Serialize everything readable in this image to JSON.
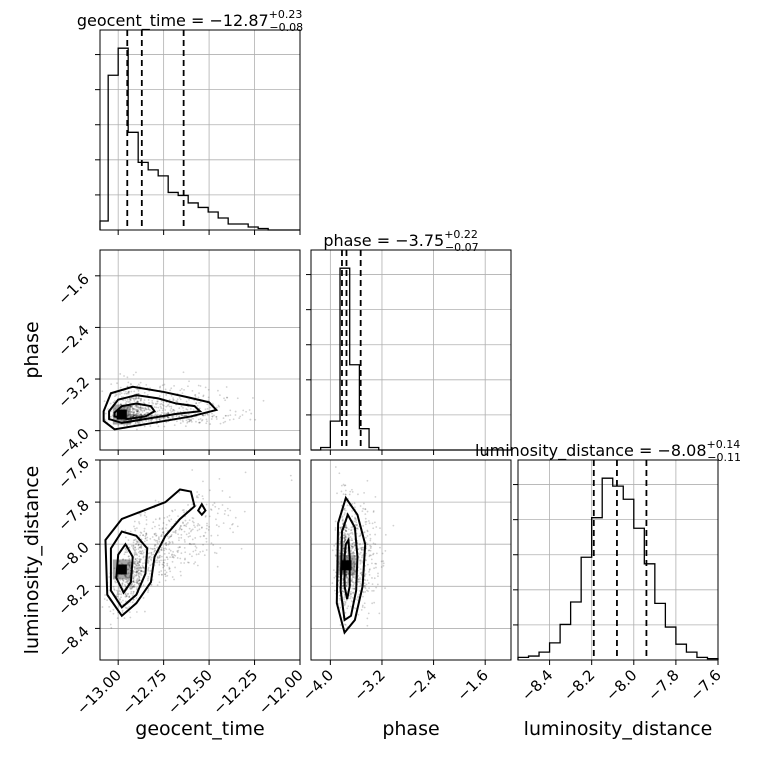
{
  "chart_data": {
    "type": "corner",
    "parameters": [
      {
        "key": "geocent_time",
        "axis_label": "geocent_time",
        "title": {
          "main": "geocent_time = −12.87",
          "upper": "+0.23",
          "lower": "−0.08"
        },
        "range": [
          -13.1,
          -12.0
        ],
        "ticks": [
          -13.0,
          -12.75,
          -12.5,
          -12.25,
          -12.0
        ],
        "tick_labels": [
          "−13.00",
          "−12.75",
          "−12.50",
          "−12.25",
          "−12.00"
        ],
        "quantiles": [
          -12.95,
          -12.87,
          -12.64
        ],
        "hist": {
          "bins": [
            -13.1,
            -13.055,
            -13.0,
            -12.945,
            -12.89,
            -12.835,
            -12.78,
            -12.725,
            -12.67,
            -12.615,
            -12.56,
            -12.505,
            -12.45,
            -12.395,
            -12.34,
            -12.285,
            -12.23,
            -12.175,
            -12.12,
            -12.065,
            -12.0
          ],
          "counts": [
            0.06,
            1.03,
            1.21,
            0.65,
            0.45,
            0.4,
            0.36,
            0.25,
            0.23,
            0.18,
            0.15,
            0.12,
            0.08,
            0.04,
            0.04,
            0.02,
            0.01,
            0.0,
            0.0,
            0.0
          ]
        }
      },
      {
        "key": "phase",
        "axis_label": "phase",
        "title": {
          "main": "phase = −3.75",
          "upper": "+0.22",
          "lower": "−0.07"
        },
        "range": [
          -4.3,
          -1.2
        ],
        "ticks": [
          -4.0,
          -3.2,
          -2.4,
          -1.6
        ],
        "tick_labels": [
          "−4.0",
          "−3.2",
          "−2.4",
          "−1.6"
        ],
        "quantiles": [
          -3.82,
          -3.75,
          -3.53
        ],
        "hist": {
          "bins": [
            -4.3,
            -4.15,
            -4.0,
            -3.85,
            -3.7,
            -3.55,
            -3.4,
            -3.25,
            -3.1,
            -2.95,
            -2.8,
            -2.65,
            -2.5,
            -2.35,
            -2.2,
            -2.05,
            -1.9,
            -1.75,
            -1.6,
            -1.45,
            -1.3,
            -1.2
          ],
          "counts": [
            0.0,
            0.02,
            0.23,
            1.45,
            0.68,
            0.17,
            0.02,
            0.0,
            0.0,
            0.0,
            0.0,
            0.0,
            0.0,
            0.0,
            0.0,
            0.0,
            0.0,
            0.0,
            0.0,
            0.0,
            0.0
          ]
        }
      },
      {
        "key": "luminosity_distance",
        "axis_label": "luminosity_distance",
        "title": {
          "main": "luminosity_distance = −8.08",
          "upper": "+0.14",
          "lower": "−0.11"
        },
        "range": [
          -8.55,
          -7.6
        ],
        "ticks": [
          -8.4,
          -8.2,
          -8.0,
          -7.8,
          -7.6
        ],
        "tick_labels": [
          "−8.4",
          "−8.2",
          "−8.0",
          "−7.8",
          "−7.6"
        ],
        "quantiles": [
          -8.19,
          -8.08,
          -7.94
        ],
        "hist": {
          "bins": [
            -8.55,
            -8.5,
            -8.45,
            -8.4,
            -8.35,
            -8.3,
            -8.25,
            -8.2,
            -8.15,
            -8.1,
            -8.05,
            -8.0,
            -7.95,
            -7.9,
            -7.85,
            -7.8,
            -7.75,
            -7.7,
            -7.65,
            -7.6
          ],
          "counts": [
            0.02,
            0.03,
            0.06,
            0.13,
            0.27,
            0.44,
            0.78,
            1.08,
            1.38,
            1.32,
            1.22,
            1.0,
            0.73,
            0.43,
            0.25,
            0.12,
            0.06,
            0.02,
            0.01
          ]
        }
      }
    ],
    "pairs": [
      {
        "x": "geocent_time",
        "y": "phase",
        "density_peak": [
          -12.98,
          -3.75
        ],
        "contours": [
          [
            [
              -13.02,
              -3.72
            ],
            [
              -12.98,
              -3.62
            ],
            [
              -12.9,
              -3.58
            ],
            [
              -12.82,
              -3.62
            ],
            [
              -12.8,
              -3.7
            ],
            [
              -12.85,
              -3.78
            ],
            [
              -12.95,
              -3.82
            ],
            [
              -13.02,
              -3.78
            ]
          ],
          [
            [
              -13.05,
              -3.7
            ],
            [
              -13.0,
              -3.52
            ],
            [
              -12.9,
              -3.45
            ],
            [
              -12.78,
              -3.5
            ],
            [
              -12.68,
              -3.58
            ],
            [
              -12.58,
              -3.62
            ],
            [
              -12.55,
              -3.7
            ],
            [
              -12.68,
              -3.74
            ],
            [
              -12.85,
              -3.82
            ],
            [
              -12.98,
              -3.88
            ],
            [
              -13.05,
              -3.82
            ]
          ],
          [
            [
              -13.08,
              -3.7
            ],
            [
              -13.04,
              -3.42
            ],
            [
              -12.92,
              -3.32
            ],
            [
              -12.75,
              -3.4
            ],
            [
              -12.62,
              -3.48
            ],
            [
              -12.5,
              -3.56
            ],
            [
              -12.46,
              -3.68
            ],
            [
              -12.6,
              -3.78
            ],
            [
              -12.85,
              -3.9
            ],
            [
              -13.02,
              -3.98
            ],
            [
              -13.08,
              -3.85
            ]
          ]
        ]
      },
      {
        "x": "geocent_time",
        "y": "luminosity_distance",
        "density_peak": [
          -12.98,
          -8.12
        ],
        "contours": [
          [
            [
              -13.0,
              -8.05
            ],
            [
              -12.96,
              -8.0
            ],
            [
              -12.92,
              -8.06
            ],
            [
              -12.93,
              -8.18
            ],
            [
              -12.97,
              -8.23
            ],
            [
              -13.01,
              -8.16
            ]
          ],
          [
            [
              -13.04,
              -8.02
            ],
            [
              -12.98,
              -7.94
            ],
            [
              -12.9,
              -7.96
            ],
            [
              -12.84,
              -8.02
            ],
            [
              -12.85,
              -8.14
            ],
            [
              -12.9,
              -8.24
            ],
            [
              -12.98,
              -8.3
            ],
            [
              -13.04,
              -8.22
            ]
          ],
          [
            [
              -13.07,
              -7.98
            ],
            [
              -12.98,
              -7.88
            ],
            [
              -12.86,
              -7.84
            ],
            [
              -12.74,
              -7.8
            ],
            [
              -12.66,
              -7.74
            ],
            [
              -12.6,
              -7.75
            ],
            [
              -12.58,
              -7.82
            ],
            [
              -12.66,
              -7.88
            ],
            [
              -12.74,
              -7.96
            ],
            [
              -12.8,
              -8.06
            ],
            [
              -12.82,
              -8.18
            ],
            [
              -12.9,
              -8.28
            ],
            [
              -12.98,
              -8.34
            ],
            [
              -13.06,
              -8.24
            ]
          ],
          [
            [
              -12.56,
              -7.84
            ],
            [
              -12.54,
              -7.81
            ],
            [
              -12.52,
              -7.84
            ],
            [
              -12.54,
              -7.86
            ]
          ]
        ]
      },
      {
        "x": "phase",
        "y": "luminosity_distance",
        "density_peak": [
          -3.75,
          -8.1
        ],
        "contours": [
          [
            [
              -3.76,
              -8.0
            ],
            [
              -3.72,
              -7.98
            ],
            [
              -3.7,
              -8.06
            ],
            [
              -3.7,
              -8.2
            ],
            [
              -3.74,
              -8.26
            ],
            [
              -3.78,
              -8.2
            ],
            [
              -3.78,
              -8.06
            ]
          ],
          [
            [
              -3.82,
              -7.94
            ],
            [
              -3.73,
              -7.86
            ],
            [
              -3.62,
              -7.92
            ],
            [
              -3.58,
              -8.06
            ],
            [
              -3.6,
              -8.22
            ],
            [
              -3.68,
              -8.34
            ],
            [
              -3.78,
              -8.36
            ],
            [
              -3.84,
              -8.22
            ]
          ],
          [
            [
              -3.88,
              -7.9
            ],
            [
              -3.76,
              -7.78
            ],
            [
              -3.58,
              -7.86
            ],
            [
              -3.46,
              -8.0
            ],
            [
              -3.5,
              -8.2
            ],
            [
              -3.62,
              -8.36
            ],
            [
              -3.78,
              -8.42
            ],
            [
              -3.9,
              -8.28
            ]
          ]
        ]
      }
    ]
  }
}
